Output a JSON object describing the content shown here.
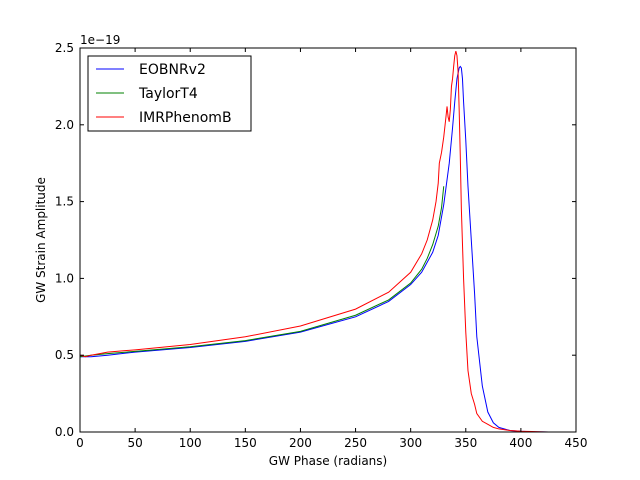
{
  "chart_data": {
    "type": "line",
    "title": "",
    "xlabel": "GW Phase (radians)",
    "ylabel": "GW Strain Amplitude",
    "y_offset_label": "1e−19",
    "xlim": [
      0,
      450
    ],
    "ylim": [
      0,
      2.5
    ],
    "xticks": [
      0,
      50,
      100,
      150,
      200,
      250,
      300,
      350,
      400,
      450
    ],
    "xtick_labels": [
      "0",
      "50",
      "100",
      "150",
      "200",
      "250",
      "300",
      "350",
      "400",
      "450"
    ],
    "yticks": [
      0,
      0.5,
      1.0,
      1.5,
      2.0,
      2.5
    ],
    "ytick_labels": [
      "0.0",
      "0.5",
      "1.0",
      "1.5",
      "2.0",
      "2.5"
    ],
    "grid": false,
    "legend_position": "top-left",
    "series": [
      {
        "name": "EOBNRv2",
        "color": "#0000ff",
        "x": [
          0,
          10,
          25,
          50,
          100,
          150,
          200,
          250,
          280,
          300,
          310,
          320,
          325,
          330,
          335,
          338,
          340,
          342,
          344,
          345,
          346,
          347,
          348,
          350,
          352,
          355,
          358,
          360,
          365,
          370,
          375,
          380,
          390,
          400,
          410,
          420,
          425
        ],
        "y": [
          0.49,
          0.49,
          0.5,
          0.52,
          0.55,
          0.59,
          0.65,
          0.75,
          0.85,
          0.96,
          1.04,
          1.17,
          1.28,
          1.48,
          1.75,
          1.98,
          2.15,
          2.3,
          2.37,
          2.38,
          2.37,
          2.3,
          2.15,
          1.9,
          1.6,
          1.25,
          0.9,
          0.62,
          0.3,
          0.13,
          0.06,
          0.03,
          0.01,
          0.005,
          0.002,
          0.001,
          0.0
        ]
      },
      {
        "name": "TaylorT4",
        "color": "#008000",
        "x": [
          0,
          10,
          25,
          50,
          100,
          150,
          200,
          250,
          280,
          300,
          310,
          315,
          320,
          325,
          328,
          330
        ],
        "y": [
          0.49,
          0.5,
          0.51,
          0.525,
          0.555,
          0.595,
          0.655,
          0.76,
          0.86,
          0.97,
          1.06,
          1.13,
          1.22,
          1.34,
          1.46,
          1.6
        ]
      },
      {
        "name": "IMRPhenomB",
        "color": "#ff0000",
        "x": [
          0,
          5,
          10,
          25,
          50,
          100,
          150,
          200,
          250,
          280,
          300,
          310,
          315,
          320,
          323,
          325,
          326,
          328,
          330,
          332,
          333,
          334,
          335,
          336,
          337,
          338,
          339,
          340,
          341,
          342,
          343,
          344,
          345,
          346,
          348,
          350,
          352,
          355,
          358,
          360,
          365,
          370,
          375,
          380,
          390,
          400,
          410,
          420,
          425
        ],
        "y": [
          0.5,
          0.49,
          0.5,
          0.52,
          0.535,
          0.57,
          0.62,
          0.69,
          0.8,
          0.91,
          1.04,
          1.16,
          1.25,
          1.38,
          1.5,
          1.62,
          1.75,
          1.82,
          1.92,
          2.05,
          2.12,
          2.05,
          2.02,
          2.1,
          2.25,
          2.3,
          2.38,
          2.45,
          2.48,
          2.45,
          2.35,
          2.1,
          1.8,
          1.45,
          1.0,
          0.65,
          0.4,
          0.25,
          0.18,
          0.12,
          0.07,
          0.05,
          0.03,
          0.02,
          0.01,
          0.005,
          0.003,
          0.001,
          0.0
        ]
      }
    ]
  }
}
